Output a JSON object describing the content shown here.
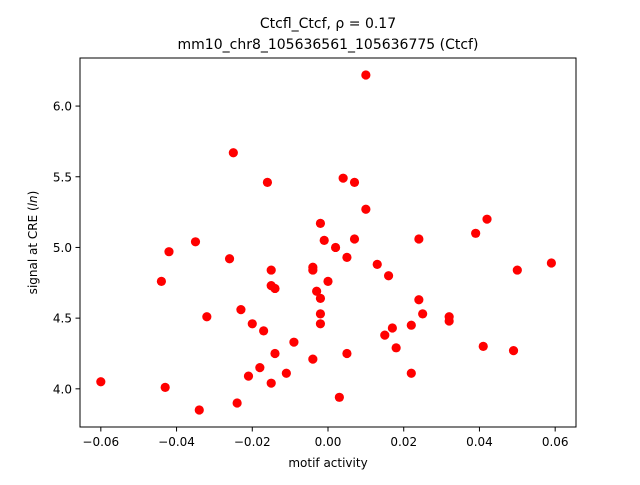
{
  "chart_data": {
    "type": "scatter",
    "title_line1": "Ctcfl_Ctcf, ρ = 0.17",
    "title_line2": "mm10_chr8_105636561_105636775 (Ctcf)",
    "xlabel": "motif activity",
    "ylabel_prefix": "signal at CRE (",
    "ylabel_italic": "ln",
    "ylabel_suffix": ")",
    "xlim": [
      -0.0655,
      0.0655
    ],
    "ylim": [
      3.73,
      6.34
    ],
    "xticks": [
      -0.06,
      -0.04,
      -0.02,
      0.0,
      0.02,
      0.04,
      0.06
    ],
    "xtick_labels": [
      "−0.06",
      "−0.04",
      "−0.02",
      "0.00",
      "0.02",
      "0.04",
      "0.06"
    ],
    "yticks": [
      4.0,
      4.5,
      5.0,
      5.5,
      6.0
    ],
    "ytick_labels": [
      "4.0",
      "4.5",
      "5.0",
      "5.5",
      "6.0"
    ],
    "grid": false,
    "legend": "none",
    "marker_color": "#ff0000",
    "points": [
      [
        -0.06,
        4.05
      ],
      [
        -0.044,
        4.76
      ],
      [
        -0.043,
        4.01
      ],
      [
        -0.042,
        4.97
      ],
      [
        -0.035,
        5.04
      ],
      [
        -0.034,
        3.85
      ],
      [
        -0.032,
        4.51
      ],
      [
        -0.026,
        4.92
      ],
      [
        -0.025,
        5.67
      ],
      [
        -0.024,
        3.9
      ],
      [
        -0.023,
        4.56
      ],
      [
        -0.021,
        4.09
      ],
      [
        -0.02,
        4.46
      ],
      [
        -0.018,
        4.15
      ],
      [
        -0.017,
        4.41
      ],
      [
        -0.016,
        5.46
      ],
      [
        -0.015,
        4.84
      ],
      [
        -0.015,
        4.73
      ],
      [
        -0.015,
        4.04
      ],
      [
        -0.014,
        4.71
      ],
      [
        -0.014,
        4.25
      ],
      [
        -0.011,
        4.11
      ],
      [
        -0.009,
        4.33
      ],
      [
        -0.004,
        4.86
      ],
      [
        -0.004,
        4.84
      ],
      [
        -0.004,
        4.21
      ],
      [
        -0.003,
        4.69
      ],
      [
        -0.002,
        4.53
      ],
      [
        -0.002,
        4.46
      ],
      [
        -0.002,
        5.17
      ],
      [
        -0.002,
        4.64
      ],
      [
        -0.001,
        5.05
      ],
      [
        0.0,
        4.76
      ],
      [
        0.002,
        5.0
      ],
      [
        0.003,
        3.94
      ],
      [
        0.004,
        5.49
      ],
      [
        0.005,
        4.93
      ],
      [
        0.005,
        4.25
      ],
      [
        0.007,
        5.06
      ],
      [
        0.007,
        5.46
      ],
      [
        0.01,
        6.22
      ],
      [
        0.01,
        5.27
      ],
      [
        0.013,
        4.88
      ],
      [
        0.015,
        4.38
      ],
      [
        0.016,
        4.8
      ],
      [
        0.017,
        4.43
      ],
      [
        0.018,
        4.29
      ],
      [
        0.022,
        4.45
      ],
      [
        0.022,
        4.11
      ],
      [
        0.024,
        4.63
      ],
      [
        0.024,
        5.06
      ],
      [
        0.025,
        4.53
      ],
      [
        0.032,
        4.51
      ],
      [
        0.032,
        4.48
      ],
      [
        0.039,
        5.1
      ],
      [
        0.041,
        4.3
      ],
      [
        0.042,
        5.2
      ],
      [
        0.049,
        4.27
      ],
      [
        0.05,
        4.84
      ],
      [
        0.059,
        4.89
      ]
    ]
  }
}
